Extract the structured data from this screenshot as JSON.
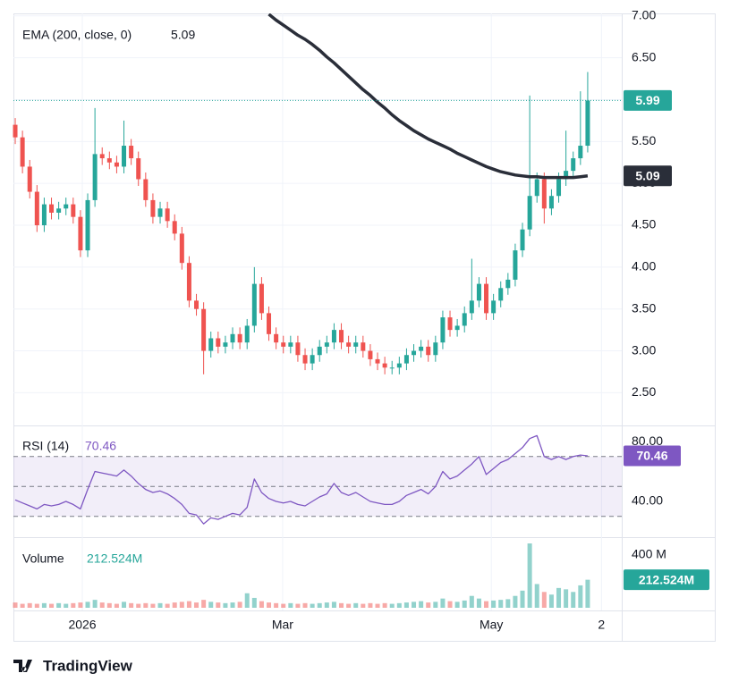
{
  "chart_data": {
    "type": "candlestick",
    "x": [
      0,
      1,
      2,
      3,
      4,
      5,
      6,
      7,
      8,
      9,
      10,
      11,
      12,
      13,
      14,
      15,
      16,
      17,
      18,
      19,
      20,
      21,
      22,
      23,
      24,
      25,
      26,
      27,
      28,
      29,
      30,
      31,
      32,
      33,
      34,
      35,
      36,
      37,
      38,
      39,
      40,
      41,
      42,
      43,
      44,
      45,
      46,
      47,
      48,
      49,
      50,
      51,
      52,
      53,
      54,
      55,
      56,
      57,
      58,
      59,
      60,
      61,
      62,
      63,
      64,
      65,
      66,
      67,
      68,
      69,
      70,
      71,
      72,
      73,
      74,
      75,
      76,
      77,
      78,
      79
    ],
    "open": [
      5.7,
      5.55,
      5.2,
      4.9,
      4.5,
      4.75,
      4.65,
      4.7,
      4.75,
      4.6,
      4.2,
      4.8,
      5.35,
      5.3,
      5.25,
      5.2,
      5.45,
      5.3,
      5.05,
      4.8,
      4.6,
      4.7,
      4.55,
      4.4,
      4.05,
      3.6,
      3.5,
      3.0,
      3.15,
      3.05,
      3.1,
      3.2,
      3.1,
      3.3,
      3.8,
      3.45,
      3.2,
      3.1,
      3.05,
      3.1,
      2.95,
      2.85,
      2.95,
      3.05,
      3.1,
      3.25,
      3.1,
      3.05,
      3.1,
      3.0,
      2.9,
      2.85,
      2.8,
      2.8,
      2.85,
      2.95,
      3.0,
      3.05,
      2.95,
      3.1,
      3.4,
      3.25,
      3.3,
      3.45,
      3.6,
      3.8,
      3.45,
      3.6,
      3.75,
      3.85,
      4.2,
      4.45,
      4.85,
      5.05,
      4.7,
      4.85,
      5.05,
      5.15,
      5.3,
      5.45
    ],
    "high": [
      5.78,
      5.63,
      5.28,
      4.98,
      4.83,
      4.83,
      4.78,
      4.83,
      4.83,
      4.68,
      4.88,
      5.9,
      5.43,
      5.38,
      5.33,
      5.75,
      5.53,
      5.38,
      5.13,
      4.88,
      4.78,
      4.78,
      4.63,
      4.48,
      4.13,
      3.68,
      3.58,
      3.23,
      3.23,
      3.18,
      3.28,
      3.28,
      3.38,
      4.0,
      3.88,
      3.53,
      3.28,
      3.18,
      3.18,
      3.18,
      3.03,
      3.03,
      3.13,
      3.18,
      3.33,
      3.33,
      3.18,
      3.18,
      3.18,
      3.08,
      2.98,
      2.93,
      2.88,
      2.93,
      3.03,
      3.08,
      3.13,
      3.13,
      3.18,
      3.48,
      3.48,
      3.38,
      3.53,
      4.1,
      3.88,
      3.88,
      3.68,
      3.83,
      3.93,
      4.28,
      4.53,
      6.05,
      5.13,
      5.13,
      4.93,
      5.13,
      5.63,
      5.38,
      6.1,
      6.33
    ],
    "low": [
      5.47,
      5.12,
      4.82,
      4.42,
      4.42,
      4.57,
      4.57,
      4.62,
      4.52,
      4.12,
      4.12,
      4.72,
      5.22,
      5.17,
      5.12,
      5.12,
      5.22,
      4.97,
      4.72,
      4.52,
      4.52,
      4.47,
      4.32,
      3.97,
      3.52,
      3.42,
      2.72,
      2.92,
      2.97,
      2.97,
      3.02,
      3.02,
      3.02,
      3.22,
      3.37,
      3.12,
      3.02,
      2.97,
      2.97,
      2.87,
      2.77,
      2.77,
      2.87,
      2.97,
      3.02,
      3.02,
      2.97,
      2.97,
      2.92,
      2.82,
      2.77,
      2.72,
      2.72,
      2.72,
      2.77,
      2.87,
      2.92,
      2.87,
      2.87,
      3.02,
      3.17,
      3.17,
      3.22,
      3.37,
      3.52,
      3.37,
      3.37,
      3.52,
      3.67,
      3.77,
      4.12,
      4.37,
      4.77,
      4.52,
      4.62,
      4.77,
      4.97,
      5.07,
      5.22,
      5.37
    ],
    "close": [
      5.55,
      5.2,
      4.9,
      4.5,
      4.75,
      4.65,
      4.7,
      4.75,
      4.6,
      4.2,
      4.8,
      5.35,
      5.3,
      5.25,
      5.2,
      5.45,
      5.3,
      5.05,
      4.8,
      4.6,
      4.7,
      4.55,
      4.4,
      4.05,
      3.6,
      3.5,
      3.0,
      3.15,
      3.05,
      3.1,
      3.2,
      3.1,
      3.3,
      3.8,
      3.45,
      3.2,
      3.1,
      3.05,
      3.1,
      2.95,
      2.85,
      2.95,
      3.05,
      3.1,
      3.25,
      3.1,
      3.05,
      3.1,
      3.0,
      2.9,
      2.85,
      2.8,
      2.8,
      2.85,
      2.95,
      3.0,
      3.05,
      2.95,
      3.1,
      3.4,
      3.25,
      3.3,
      3.45,
      3.6,
      3.8,
      3.45,
      3.6,
      3.75,
      3.85,
      4.2,
      4.45,
      4.85,
      5.05,
      4.7,
      4.85,
      5.05,
      5.15,
      5.3,
      5.45,
      5.99
    ],
    "up_color": "#26a69a",
    "down_color": "#ef5350",
    "ylim": [
      2.12,
      7.03
    ],
    "yticks": [
      {
        "value": 2.5,
        "label": "2.50"
      },
      {
        "value": 3,
        "label": "3.00"
      },
      {
        "value": 3.5,
        "label": "3.50"
      },
      {
        "value": 4,
        "label": "4.00"
      },
      {
        "value": 4.5,
        "label": "4.50"
      },
      {
        "value": 5,
        "label": "5.00"
      },
      {
        "value": 5.5,
        "label": "5.50"
      },
      {
        "value": 6,
        "label": "6.00"
      },
      {
        "value": 6.5,
        "label": "6.50"
      },
      {
        "value": 7,
        "label": "7.00"
      }
    ],
    "xlim": [
      -0.25,
      83.7
    ],
    "xticks": [
      {
        "value": 9.26,
        "label": "2026"
      },
      {
        "value": 36.9,
        "label": "Mar"
      },
      {
        "value": 65.7,
        "label": "May"
      },
      {
        "value": 80.9,
        "label": "2"
      }
    ],
    "grid": true,
    "ema": {
      "name": "EMA (200, close, 0)",
      "color": "#2a2e39",
      "values": [
        null,
        null,
        null,
        null,
        null,
        null,
        null,
        null,
        null,
        null,
        null,
        null,
        null,
        null,
        null,
        null,
        null,
        null,
        null,
        null,
        null,
        null,
        null,
        null,
        null,
        null,
        null,
        null,
        null,
        null,
        null,
        null,
        null,
        null,
        null,
        7.02,
        6.95,
        6.89,
        6.83,
        6.77,
        6.72,
        6.66,
        6.59,
        6.51,
        6.44,
        6.36,
        6.28,
        6.2,
        6.12,
        6.05,
        5.97,
        5.9,
        5.82,
        5.75,
        5.69,
        5.63,
        5.58,
        5.53,
        5.49,
        5.45,
        5.41,
        5.36,
        5.32,
        5.28,
        5.24,
        5.2,
        5.17,
        5.14,
        5.12,
        5.1,
        5.09,
        5.08,
        5.08,
        5.07,
        5.07,
        5.07,
        5.07,
        5.07,
        5.08,
        5.09
      ]
    },
    "rsi": {
      "name": "RSI (14)",
      "color": "#7e57c2",
      "values": [
        41,
        39,
        37,
        35,
        38,
        37,
        38,
        40,
        38,
        35,
        48,
        60,
        59,
        58,
        57,
        61,
        57,
        52,
        48,
        46,
        47,
        45,
        42,
        38,
        32,
        31,
        25,
        29,
        28,
        30,
        32,
        31,
        36,
        55,
        46,
        42,
        40,
        39,
        40,
        38,
        37,
        40,
        43,
        45,
        52,
        46,
        44,
        46,
        43,
        40,
        39,
        38,
        38,
        40,
        44,
        46,
        48,
        45,
        50,
        60,
        55,
        57,
        61,
        65,
        70,
        58,
        62,
        66,
        68,
        72,
        76,
        82,
        84,
        70,
        68,
        70,
        68,
        70,
        71,
        70.46
      ],
      "ylim": [
        16.7,
        89.6
      ],
      "yticks": [
        {
          "value": 40,
          "label": "40.00"
        },
        {
          "value": 80,
          "label": "80.00"
        }
      ],
      "levels": [
        70,
        50,
        30
      ]
    },
    "volume": {
      "name": "Volume",
      "values": [
        40,
        30,
        35,
        30,
        35,
        30,
        35,
        30,
        35,
        40,
        45,
        60,
        40,
        35,
        30,
        45,
        35,
        30,
        35,
        30,
        35,
        30,
        40,
        45,
        50,
        40,
        60,
        45,
        40,
        35,
        40,
        45,
        110,
        75,
        50,
        40,
        35,
        30,
        35,
        30,
        35,
        30,
        35,
        40,
        45,
        35,
        30,
        35,
        30,
        35,
        30,
        35,
        30,
        35,
        40,
        45,
        50,
        40,
        45,
        70,
        50,
        45,
        55,
        90,
        70,
        50,
        55,
        60,
        65,
        90,
        130,
        488,
        180,
        120,
        100,
        150,
        140,
        120,
        170,
        212.524
      ],
      "last_value_label": "212.524M",
      "ylim": [
        0,
        522
      ],
      "yticks": [
        {
          "value": 400,
          "label": "400 M"
        }
      ]
    }
  },
  "brand": "TradingView"
}
